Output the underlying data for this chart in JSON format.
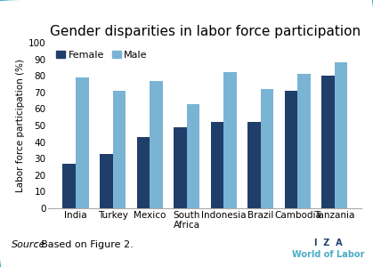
{
  "title": "Gender disparities in labor force participation",
  "ylabel": "Labor force participation (%)",
  "categories": [
    "India",
    "Turkey",
    "Mexico",
    "South\nAfrica",
    "Indonesia",
    "Brazil",
    "Cambodia",
    "Tanzania"
  ],
  "female": [
    27,
    33,
    43,
    49,
    52,
    52,
    71,
    80
  ],
  "male": [
    79,
    71,
    77,
    63,
    82,
    72,
    81,
    88
  ],
  "female_color": "#1F3F6A",
  "male_color": "#7AB4D4",
  "ylim": [
    0,
    100
  ],
  "yticks": [
    0,
    10,
    20,
    30,
    40,
    50,
    60,
    70,
    80,
    90,
    100
  ],
  "legend_labels": [
    "Female",
    "Male"
  ],
  "source_italic": "Source",
  "source_normal": ": Based on Figure 2.",
  "bar_width": 0.35,
  "background_color": "#FFFFFF",
  "border_color": "#4BACC6",
  "iza_text": "I  Z  A",
  "wol_text": "World of Labor",
  "iza_color": "#1F3F6A",
  "wol_color": "#4BACC6",
  "title_fontsize": 11,
  "axis_fontsize": 7.5,
  "tick_fontsize": 7.5,
  "legend_fontsize": 8,
  "source_fontsize": 8
}
